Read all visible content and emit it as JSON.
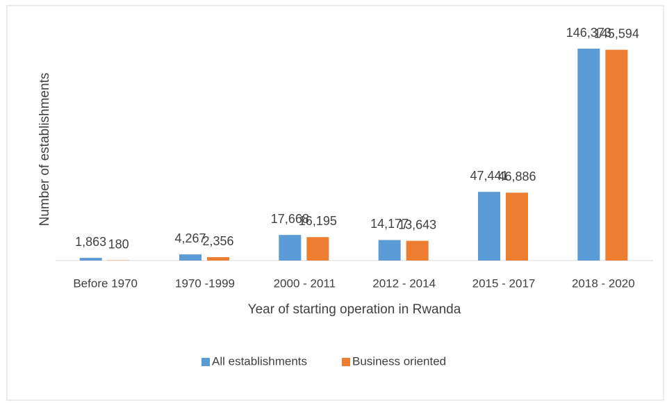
{
  "chart_data": {
    "type": "bar",
    "y_label": "Number of establishments",
    "x_label": "Year of starting operation in Rwanda",
    "categories": [
      "Before 1970",
      "1970 -1999",
      "2000 - 2011",
      "2012 - 2014",
      "2015 - 2017",
      "2018 - 2020"
    ],
    "series": [
      {
        "name": "All establishments",
        "color": "#5b9bd5",
        "values": [
          1863,
          4267,
          17668,
          14177,
          47441,
          146373
        ],
        "value_labels": [
          "1,863",
          "4,267",
          "17,668",
          "14,177",
          "47,441",
          "146,373"
        ]
      },
      {
        "name": "Business oriented",
        "color": "#ed7d31",
        "values": [
          180,
          2356,
          16195,
          13643,
          46886,
          145594
        ],
        "value_labels": [
          "180",
          "2,356",
          "16,195",
          "13,643",
          "46,886",
          "145,594"
        ]
      }
    ],
    "legend": "bottom"
  }
}
